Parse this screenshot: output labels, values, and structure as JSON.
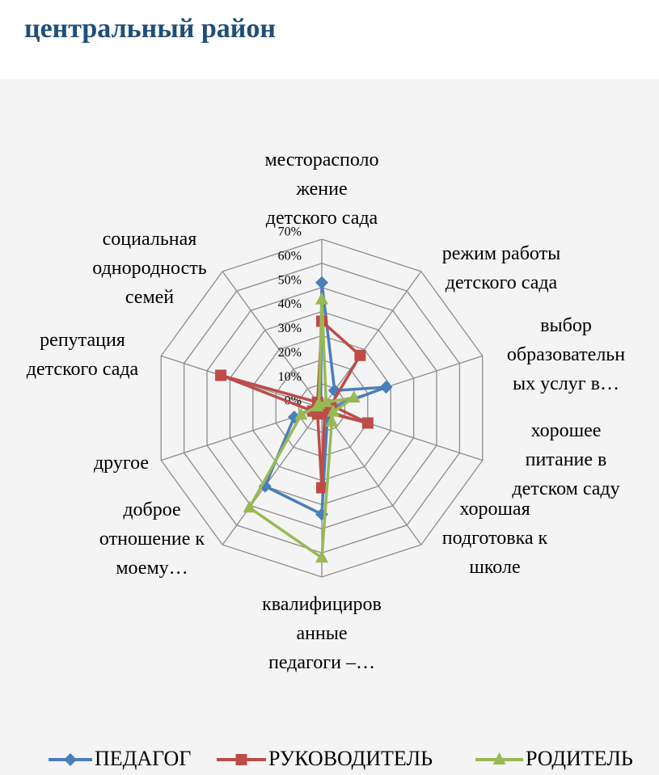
{
  "chart_data": {
    "type": "radar",
    "title": "центральный район",
    "categories": [
      "месторасполо\nжение\nдетского сада",
      "режим работы\nдетского сада",
      "выбор\nобразовательн\nых услуг в…",
      "хорошее\nпитание в\nдетском саду",
      "хорошая\nподготовка к\nшколе",
      "квалифициров\nанные\nпедагоги –…",
      "доброе\nотношение к\nмоему…",
      "другое",
      "репутация\nдетского сада",
      "социальная\nоднородность\nсемей"
    ],
    "series": [
      {
        "name": "ПЕДАГОГ",
        "color": "#4a7ebb",
        "marker": "diamond",
        "values": [
          52,
          9,
          28,
          2,
          4,
          44,
          40,
          12,
          2,
          1
        ]
      },
      {
        "name": "РУКОВОДИТЕЛЬ",
        "color": "#be4b48",
        "marker": "square",
        "values": [
          36,
          27,
          4,
          20,
          2,
          33,
          3,
          4,
          44,
          3
        ]
      },
      {
        "name": "РОДИТЕЛЬ",
        "color": "#98b954",
        "marker": "triangle",
        "values": [
          45,
          3,
          14,
          5,
          7,
          62,
          51,
          9,
          2,
          2
        ]
      }
    ],
    "ylim": [
      0,
      70
    ],
    "yticks": [
      {
        "value": 0,
        "label": "0%"
      },
      {
        "value": 10,
        "label": "10%"
      },
      {
        "value": 20,
        "label": "20%"
      },
      {
        "value": 30,
        "label": "30%"
      },
      {
        "value": 40,
        "label": "40%"
      },
      {
        "value": 50,
        "label": "50%"
      },
      {
        "value": 60,
        "label": "60%"
      },
      {
        "value": 70,
        "label": "70%"
      }
    ],
    "grid": true,
    "legend": "bottom"
  }
}
